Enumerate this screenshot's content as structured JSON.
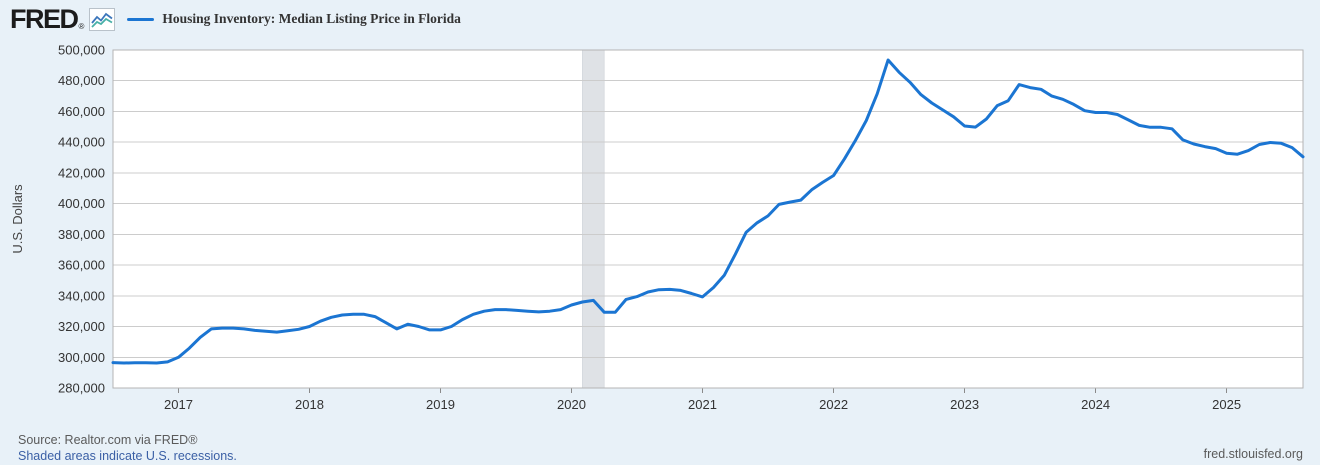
{
  "header": {
    "logo_text": "FRED",
    "logo_registered": "®",
    "series_title": "Housing Inventory: Median Listing Price in Florida"
  },
  "footer": {
    "source": "Source: Realtor.com via FRED®",
    "recession_note": "Shaded areas indicate U.S. recessions.",
    "site": "fred.stlouisfed.org"
  },
  "colors": {
    "accent_line_blue": "#1b75d2",
    "recession_gray": "#dfe2e6",
    "link_blue": "#3a5fa5",
    "page_background": "#e8f1f8",
    "logo_icon_blue": "#3c76bb",
    "logo_icon_teal": "#48b0a7"
  },
  "chart_data": {
    "type": "line",
    "title": "Housing Inventory: Median Listing Price in Florida",
    "ylabel": "U.S. Dollars",
    "frequency": "monthly",
    "x_start": "2016-07",
    "x_end": "2025-08",
    "ylim": [
      280000,
      500000
    ],
    "yticks": [
      280000,
      300000,
      320000,
      340000,
      360000,
      380000,
      400000,
      420000,
      440000,
      460000,
      480000,
      500000
    ],
    "xticks": [
      "2017",
      "2018",
      "2019",
      "2020",
      "2021",
      "2022",
      "2023",
      "2024",
      "2025"
    ],
    "grid": "horizontal-only",
    "legend_position": "top-left",
    "recessions": [
      {
        "start": "2020-02",
        "end": "2020-04"
      }
    ],
    "line_color": "#1b75d2",
    "recession_color": "#dfe2e6",
    "values": [
      296500,
      296300,
      296400,
      296400,
      296300,
      297000,
      300000,
      306000,
      313000,
      318500,
      319000,
      319000,
      318500,
      317500,
      317000,
      316400,
      317200,
      318200,
      320000,
      323500,
      326000,
      327500,
      328000,
      328000,
      326500,
      322500,
      318500,
      321500,
      320000,
      317800,
      317800,
      320000,
      324500,
      328000,
      330000,
      331000,
      331000,
      330500,
      330000,
      329500,
      330000,
      331000,
      334000,
      336000,
      337000,
      329300,
      329300,
      337700,
      339500,
      342500,
      344000,
      344200,
      343500,
      341500,
      339300,
      345400,
      353500,
      367000,
      381400,
      387500,
      392000,
      399500,
      401000,
      402300,
      409000,
      413800,
      418300,
      429200,
      441100,
      454100,
      471500,
      493500,
      485500,
      479000,
      471000,
      465500,
      461000,
      456500,
      450500,
      449800,
      455100,
      463800,
      467000,
      477500,
      475500,
      474400,
      470000,
      467900,
      464600,
      460500,
      459300,
      459300,
      458000,
      454500,
      450900,
      449700,
      449700,
      448700,
      441500,
      438800,
      437100,
      435800,
      432800,
      432200,
      434500,
      438500,
      439800,
      439300,
      436500,
      430500
    ]
  }
}
